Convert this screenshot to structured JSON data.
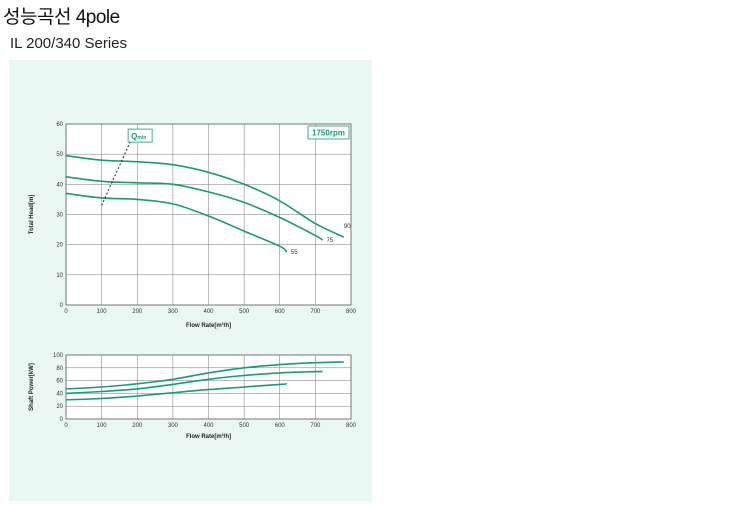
{
  "page": {
    "title": "성능곡선 4pole",
    "subtitle": "IL 200/340 Series"
  },
  "colors": {
    "curve": "#1a9a7a",
    "panel": "#eaf8f3",
    "grid": "#777777"
  },
  "chart_data": [
    {
      "type": "line",
      "speed_label": "1750rpm",
      "annotation": {
        "text": "Qmin",
        "main": "Q",
        "sub": "min"
      },
      "xlabel": "Flow Rate[m³/h]",
      "ylabel": "Total Head[m]",
      "xlim": [
        0,
        800
      ],
      "ylim": [
        0,
        60
      ],
      "xticks": [
        "0",
        "100",
        "200",
        "300",
        "400",
        "500",
        "600",
        "700",
        "800"
      ],
      "yticks": [
        "0",
        "10",
        "20",
        "30",
        "40",
        "50",
        "60"
      ],
      "grid": true,
      "qmin_line": {
        "x": [
          100,
          180
        ],
        "y": [
          33,
          54
        ]
      },
      "series": [
        {
          "name": "90",
          "x": [
            0,
            100,
            200,
            300,
            400,
            500,
            600,
            700,
            780
          ],
          "y": [
            49.5,
            48,
            47.5,
            46.5,
            44,
            40,
            34.5,
            27,
            22.5
          ]
        },
        {
          "name": "75",
          "x": [
            0,
            100,
            200,
            300,
            400,
            500,
            600,
            700,
            720
          ],
          "y": [
            42.5,
            41,
            40.5,
            40,
            37.5,
            34,
            29,
            23,
            21.5
          ]
        },
        {
          "name": "55",
          "x": [
            0,
            100,
            200,
            300,
            400,
            500,
            600,
            620
          ],
          "y": [
            37,
            35.5,
            35,
            33.5,
            29.5,
            24.5,
            19.5,
            17.5
          ]
        }
      ]
    },
    {
      "type": "line",
      "xlabel": "Flow Rate[m³/h]",
      "ylabel": "Shaft Power[kW]",
      "xlim": [
        0,
        800
      ],
      "ylim": [
        0,
        100
      ],
      "xticks": [
        "0",
        "100",
        "200",
        "300",
        "400",
        "500",
        "600",
        "700",
        "800"
      ],
      "yticks": [
        "0",
        "20",
        "40",
        "60",
        "80",
        "100"
      ],
      "grid": true,
      "series": [
        {
          "x": [
            0,
            100,
            200,
            300,
            400,
            500,
            600,
            700,
            780
          ],
          "y": [
            47,
            50,
            55,
            62,
            72,
            80,
            85,
            88,
            89
          ]
        },
        {
          "x": [
            0,
            100,
            200,
            300,
            400,
            500,
            600,
            700,
            720
          ],
          "y": [
            40,
            43,
            47,
            54,
            62,
            68,
            72,
            74,
            74
          ]
        },
        {
          "x": [
            0,
            100,
            200,
            300,
            400,
            500,
            600,
            620
          ],
          "y": [
            30,
            32,
            36,
            41,
            46,
            50,
            54,
            55
          ]
        }
      ]
    }
  ]
}
